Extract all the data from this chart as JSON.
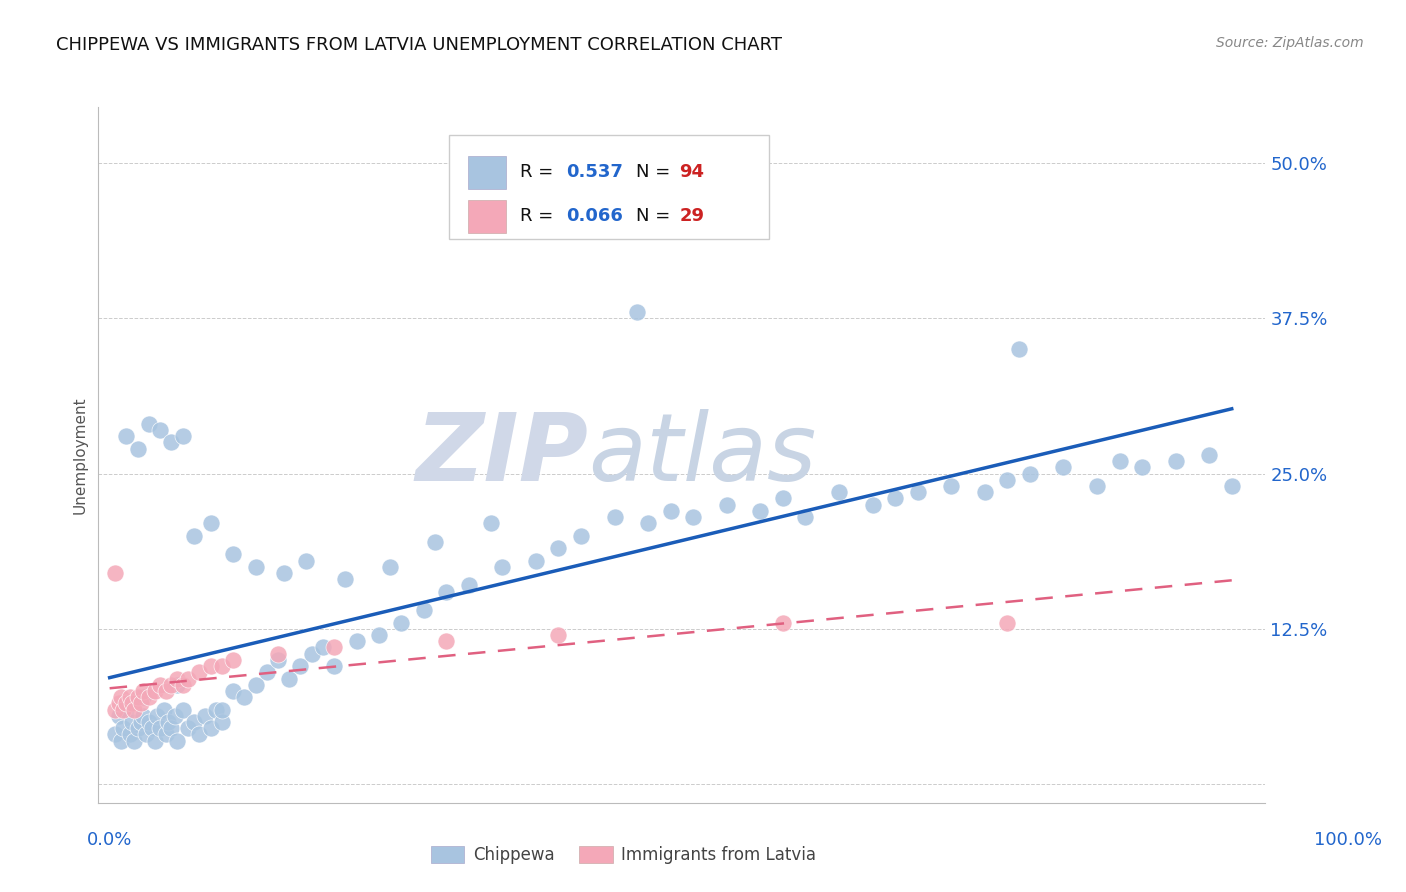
{
  "title": "CHIPPEWA VS IMMIGRANTS FROM LATVIA UNEMPLOYMENT CORRELATION CHART",
  "source": "Source: ZipAtlas.com",
  "ylabel": "Unemployment",
  "y_ticks": [
    0.0,
    0.125,
    0.25,
    0.375,
    0.5
  ],
  "y_tick_labels": [
    "",
    "12.5%",
    "25.0%",
    "37.5%",
    "50.0%"
  ],
  "blue_color": "#A8C4E0",
  "pink_color": "#F4A8B8",
  "blue_line_color": "#1A5CB8",
  "pink_line_color": "#E06080",
  "legend_r_color": "#2266CC",
  "legend_n_color": "#CC2222",
  "watermark_zip_color": "#D0D8E8",
  "watermark_atlas_color": "#C8D4E4",
  "chippewa_x": [
    0.005,
    0.008,
    0.01,
    0.012,
    0.015,
    0.018,
    0.02,
    0.022,
    0.025,
    0.028,
    0.03,
    0.032,
    0.035,
    0.038,
    0.04,
    0.042,
    0.045,
    0.048,
    0.05,
    0.052,
    0.055,
    0.058,
    0.06,
    0.065,
    0.07,
    0.075,
    0.08,
    0.085,
    0.09,
    0.095,
    0.1,
    0.11,
    0.12,
    0.13,
    0.14,
    0.15,
    0.16,
    0.17,
    0.18,
    0.19,
    0.2,
    0.22,
    0.24,
    0.26,
    0.28,
    0.3,
    0.32,
    0.35,
    0.38,
    0.4,
    0.42,
    0.45,
    0.48,
    0.5,
    0.52,
    0.55,
    0.58,
    0.6,
    0.62,
    0.65,
    0.68,
    0.7,
    0.72,
    0.75,
    0.78,
    0.8,
    0.82,
    0.85,
    0.88,
    0.9,
    0.92,
    0.95,
    0.98,
    1.0,
    0.015,
    0.025,
    0.035,
    0.045,
    0.055,
    0.065,
    0.075,
    0.09,
    0.11,
    0.13,
    0.155,
    0.175,
    0.21,
    0.25,
    0.29,
    0.34,
    0.47,
    0.81,
    0.03,
    0.06,
    0.1
  ],
  "chippewa_y": [
    0.04,
    0.055,
    0.035,
    0.045,
    0.06,
    0.04,
    0.05,
    0.035,
    0.045,
    0.05,
    0.055,
    0.04,
    0.05,
    0.045,
    0.035,
    0.055,
    0.045,
    0.06,
    0.04,
    0.05,
    0.045,
    0.055,
    0.035,
    0.06,
    0.045,
    0.05,
    0.04,
    0.055,
    0.045,
    0.06,
    0.05,
    0.075,
    0.07,
    0.08,
    0.09,
    0.1,
    0.085,
    0.095,
    0.105,
    0.11,
    0.095,
    0.115,
    0.12,
    0.13,
    0.14,
    0.155,
    0.16,
    0.175,
    0.18,
    0.19,
    0.2,
    0.215,
    0.21,
    0.22,
    0.215,
    0.225,
    0.22,
    0.23,
    0.215,
    0.235,
    0.225,
    0.23,
    0.235,
    0.24,
    0.235,
    0.245,
    0.25,
    0.255,
    0.24,
    0.26,
    0.255,
    0.26,
    0.265,
    0.24,
    0.28,
    0.27,
    0.29,
    0.285,
    0.275,
    0.28,
    0.2,
    0.21,
    0.185,
    0.175,
    0.17,
    0.18,
    0.165,
    0.175,
    0.195,
    0.21,
    0.38,
    0.35,
    0.07,
    0.08,
    0.06
  ],
  "latvia_x": [
    0.005,
    0.008,
    0.01,
    0.012,
    0.015,
    0.018,
    0.02,
    0.022,
    0.025,
    0.028,
    0.03,
    0.035,
    0.04,
    0.045,
    0.05,
    0.055,
    0.06,
    0.065,
    0.07,
    0.08,
    0.09,
    0.1,
    0.11,
    0.15,
    0.2,
    0.3,
    0.4,
    0.6,
    0.8,
    0.005
  ],
  "latvia_y": [
    0.06,
    0.065,
    0.07,
    0.06,
    0.065,
    0.07,
    0.065,
    0.06,
    0.07,
    0.065,
    0.075,
    0.07,
    0.075,
    0.08,
    0.075,
    0.08,
    0.085,
    0.08,
    0.085,
    0.09,
    0.095,
    0.095,
    0.1,
    0.105,
    0.11,
    0.115,
    0.12,
    0.13,
    0.13,
    0.17
  ]
}
